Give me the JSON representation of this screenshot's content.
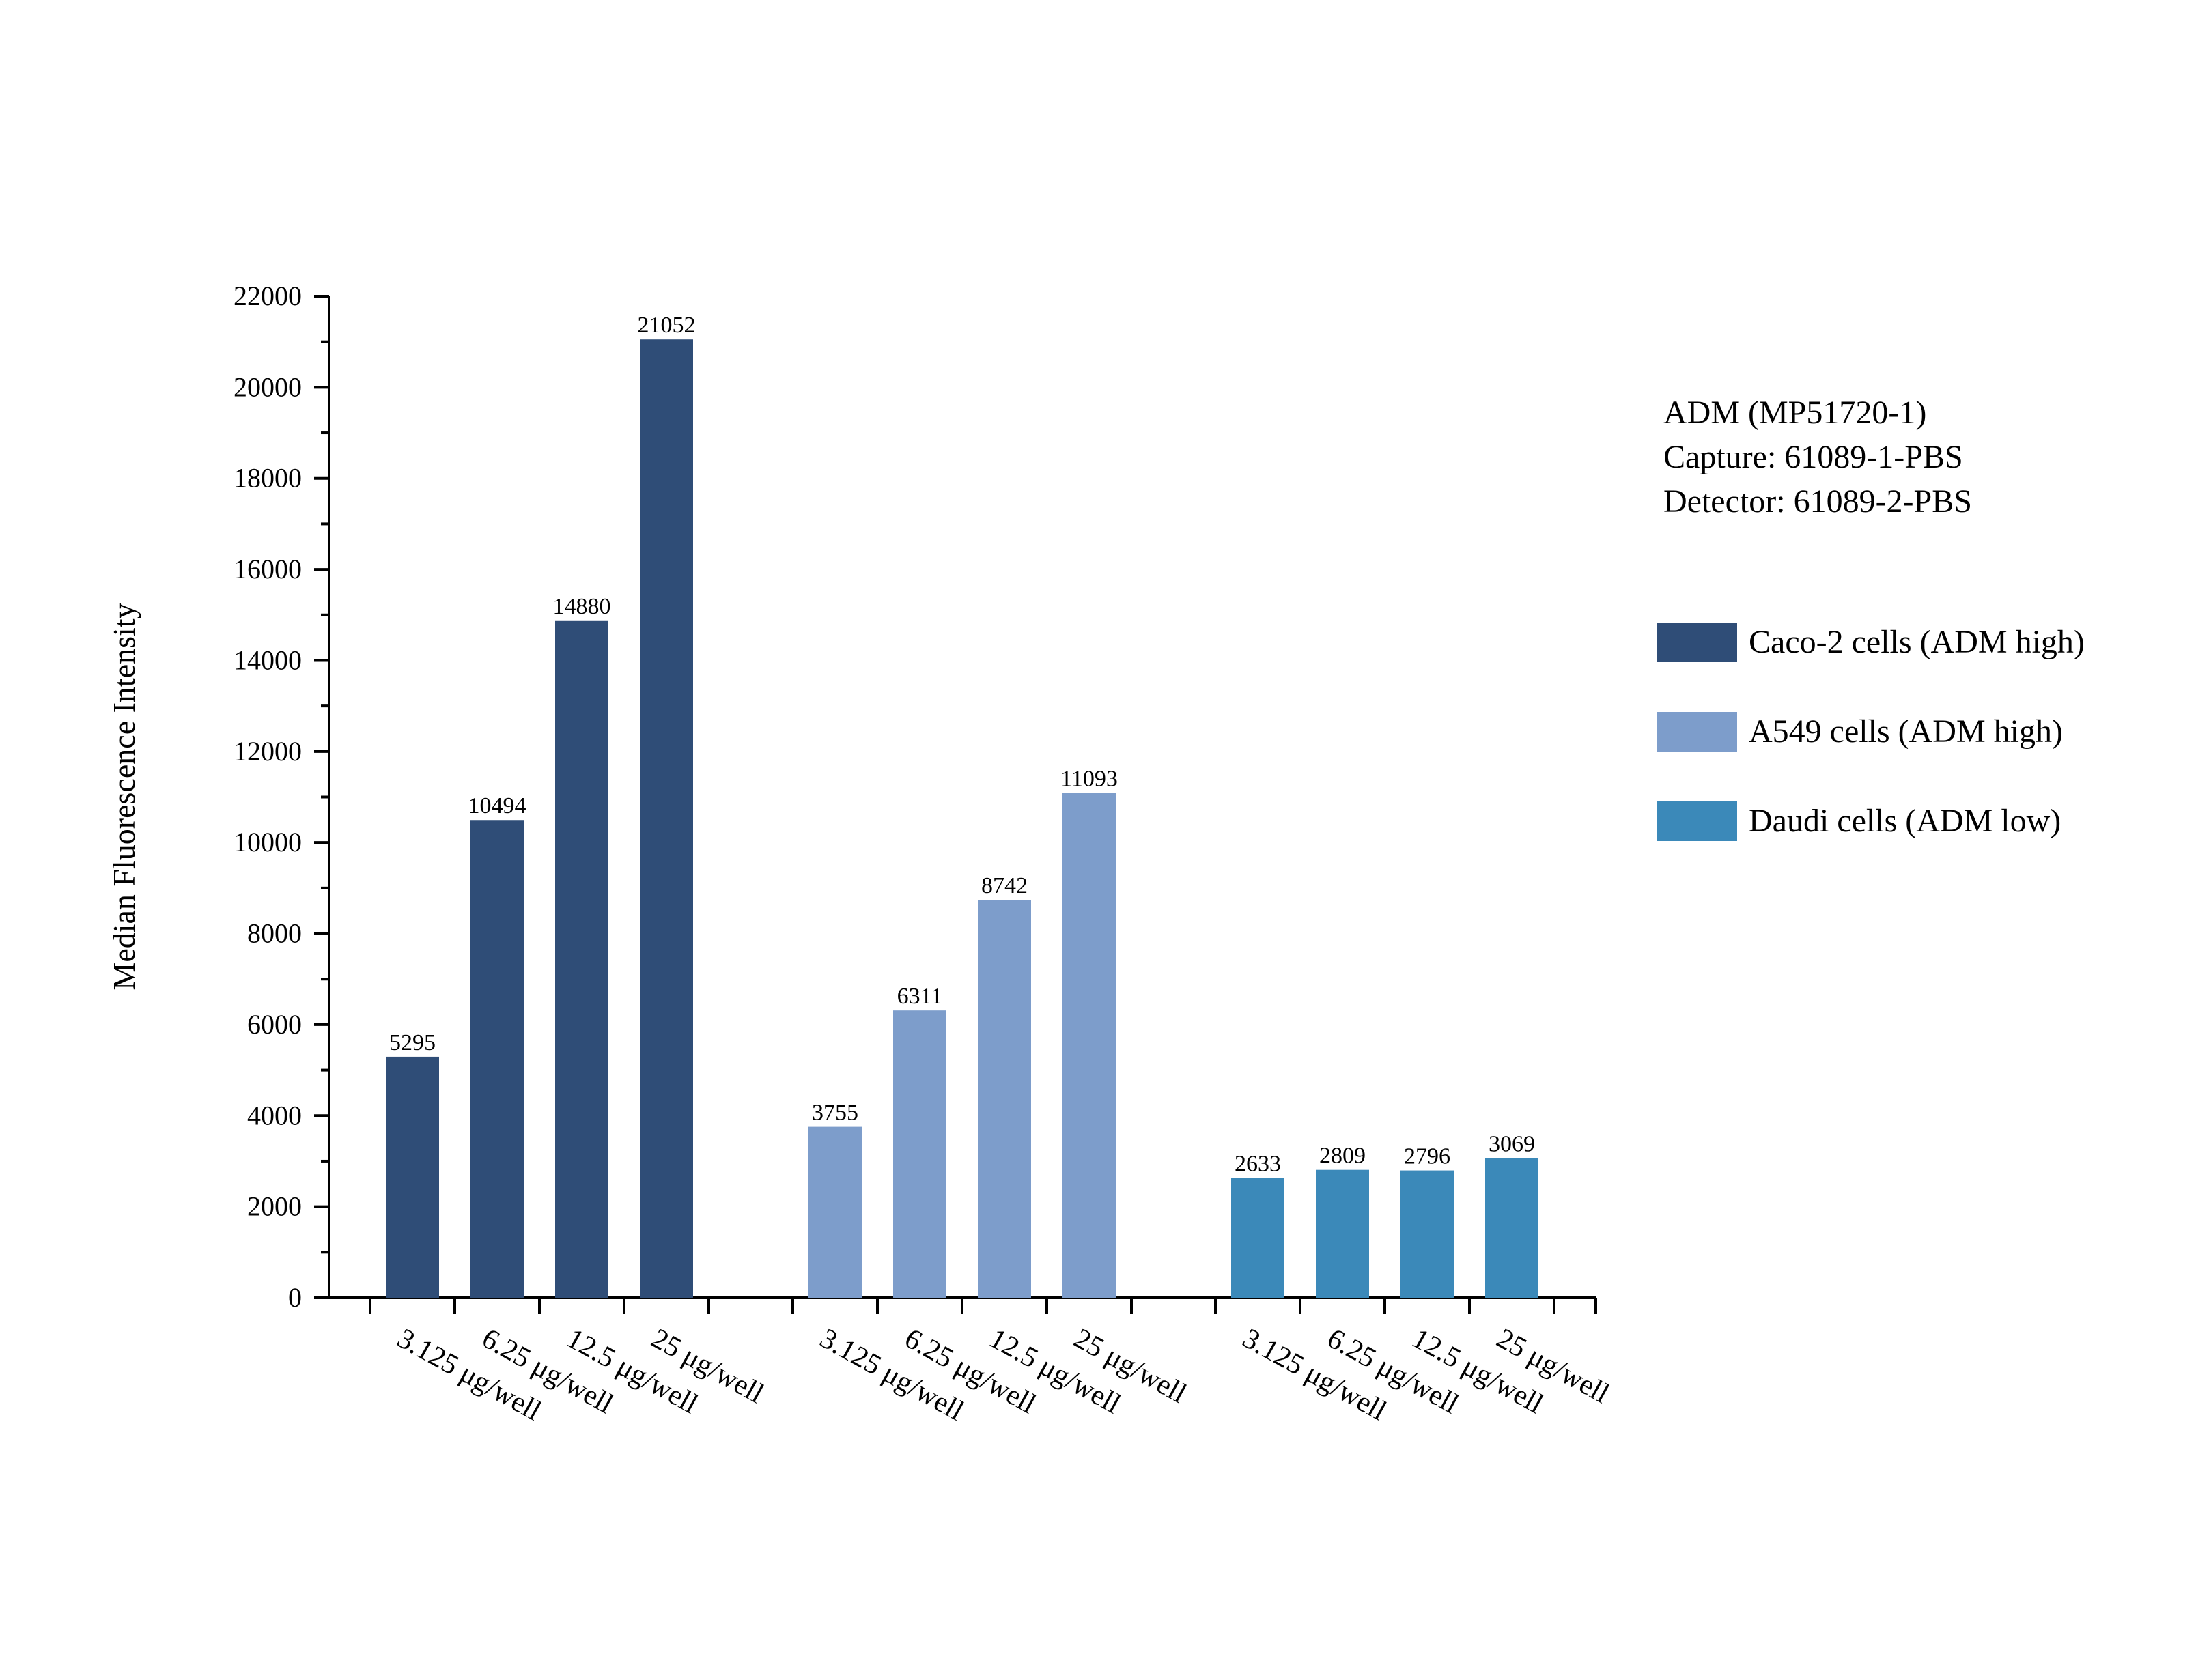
{
  "chart_data": {
    "type": "bar",
    "ylabel": "Median Fluorescence Intensity",
    "ylim": [
      0,
      22000
    ],
    "yticks": [
      0,
      2000,
      4000,
      6000,
      8000,
      10000,
      12000,
      14000,
      16000,
      18000,
      20000,
      22000
    ],
    "grid": false,
    "legend_position": "right",
    "categories": [
      "3.125 μg/well",
      "6.25 μg/well",
      "12.5 μg/well",
      "25 μg/well"
    ],
    "series": [
      {
        "name": "Caco-2 cells (ADM high)",
        "color": "#2f4d77",
        "values": [
          5295,
          10494,
          14880,
          21052
        ]
      },
      {
        "name": "A549 cells (ADM high)",
        "color": "#7d9dcb",
        "values": [
          3755,
          6311,
          8742,
          11093
        ]
      },
      {
        "name": "Daudi cells (ADM low)",
        "color": "#3b89b9",
        "values": [
          2633,
          2809,
          2796,
          3069
        ]
      }
    ],
    "annotation": [
      "ADM (MP51720-1)",
      "Capture: 61089-1-PBS",
      "Detector: 61089-2-PBS"
    ]
  }
}
